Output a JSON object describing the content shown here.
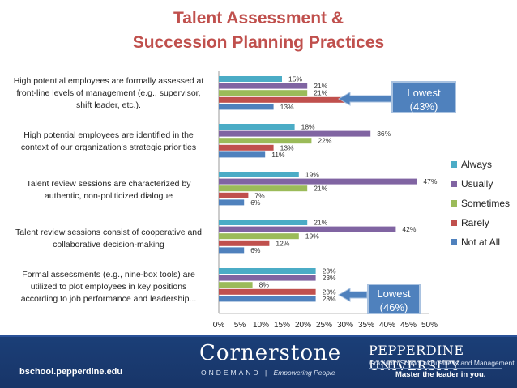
{
  "title_line1": "Talent Assessment &",
  "title_line2": "Succession Planning Practices",
  "chart_data": {
    "type": "bar",
    "orientation": "horizontal",
    "title": "Talent Assessment & Succession Planning Practices",
    "categories": [
      "High potential employees are formally assessed at front-line levels of management (e.g., supervisor, shift leader, etc.).",
      "High potential employees are identified in the context of our organization's strategic priorities",
      "Talent review sessions are characterized by authentic, non-politicized dialogue",
      "Talent review sessions consist of cooperative and collaborative decision-making",
      "Formal assessments (e.g., nine-box tools) are utilized to plot employees in key positions according to job performance and leadership..."
    ],
    "category_lines": [
      [
        "High potential employees are formally assessed at",
        "front-line levels of management (e.g., supervisor,",
        "shift leader, etc.)."
      ],
      [
        "High potential employees are identified in the",
        "context of our organization's strategic priorities"
      ],
      [
        "Talent review sessions are characterized by",
        "authentic, non-politicized dialogue"
      ],
      [
        "Talent review sessions consist of cooperative and",
        "collaborative decision-making"
      ],
      [
        "Formal assessments (e.g., nine-box tools) are",
        "utilized to plot employees in key positions",
        "according to job performance and leadership..."
      ]
    ],
    "series": [
      {
        "name": "Always",
        "color": "#4bacc6",
        "values": [
          15,
          18,
          19,
          21,
          23
        ]
      },
      {
        "name": "Usually",
        "color": "#8064a2",
        "values": [
          21,
          36,
          47,
          42,
          23
        ]
      },
      {
        "name": "Sometimes",
        "color": "#9bbb59",
        "values": [
          21,
          22,
          21,
          19,
          8
        ]
      },
      {
        "name": "Rarely",
        "color": "#c0504d",
        "values": [
          30,
          13,
          7,
          12,
          23
        ]
      },
      {
        "name": "Not at All",
        "color": "#4f81bd",
        "values": [
          13,
          11,
          6,
          6,
          23
        ]
      }
    ],
    "x_ticks": [
      "0%",
      "5%",
      "10%",
      "15%",
      "20%",
      "25%",
      "30%",
      "35%",
      "40%",
      "45%",
      "50%"
    ],
    "xlim": [
      0,
      50
    ],
    "unit": "%",
    "legend_position": "right",
    "legend_order": [
      "Always",
      "Usually",
      "Sometimes",
      "Rarely",
      "Not at All"
    ],
    "grid": false
  },
  "callouts": [
    {
      "line1": "Lowest",
      "line2": "(43%)"
    },
    {
      "line1": "Lowest",
      "line2": "(46%)"
    }
  ],
  "footer": {
    "left_text": "bschool.pepperdine.edu",
    "cornerstone_name": "Cornerstone",
    "cornerstone_sub": "ONDEMAND",
    "cornerstone_tagline": "Empowering People",
    "pepperdine_name": "PEPPERDINE UNIVERSITY",
    "pepperdine_sub": "Graziadio School of Business and Management",
    "pepperdine_tagline": "Master the leader in you.",
    "colors": {
      "background": "#1b3f78",
      "text": "#ffffff"
    }
  }
}
